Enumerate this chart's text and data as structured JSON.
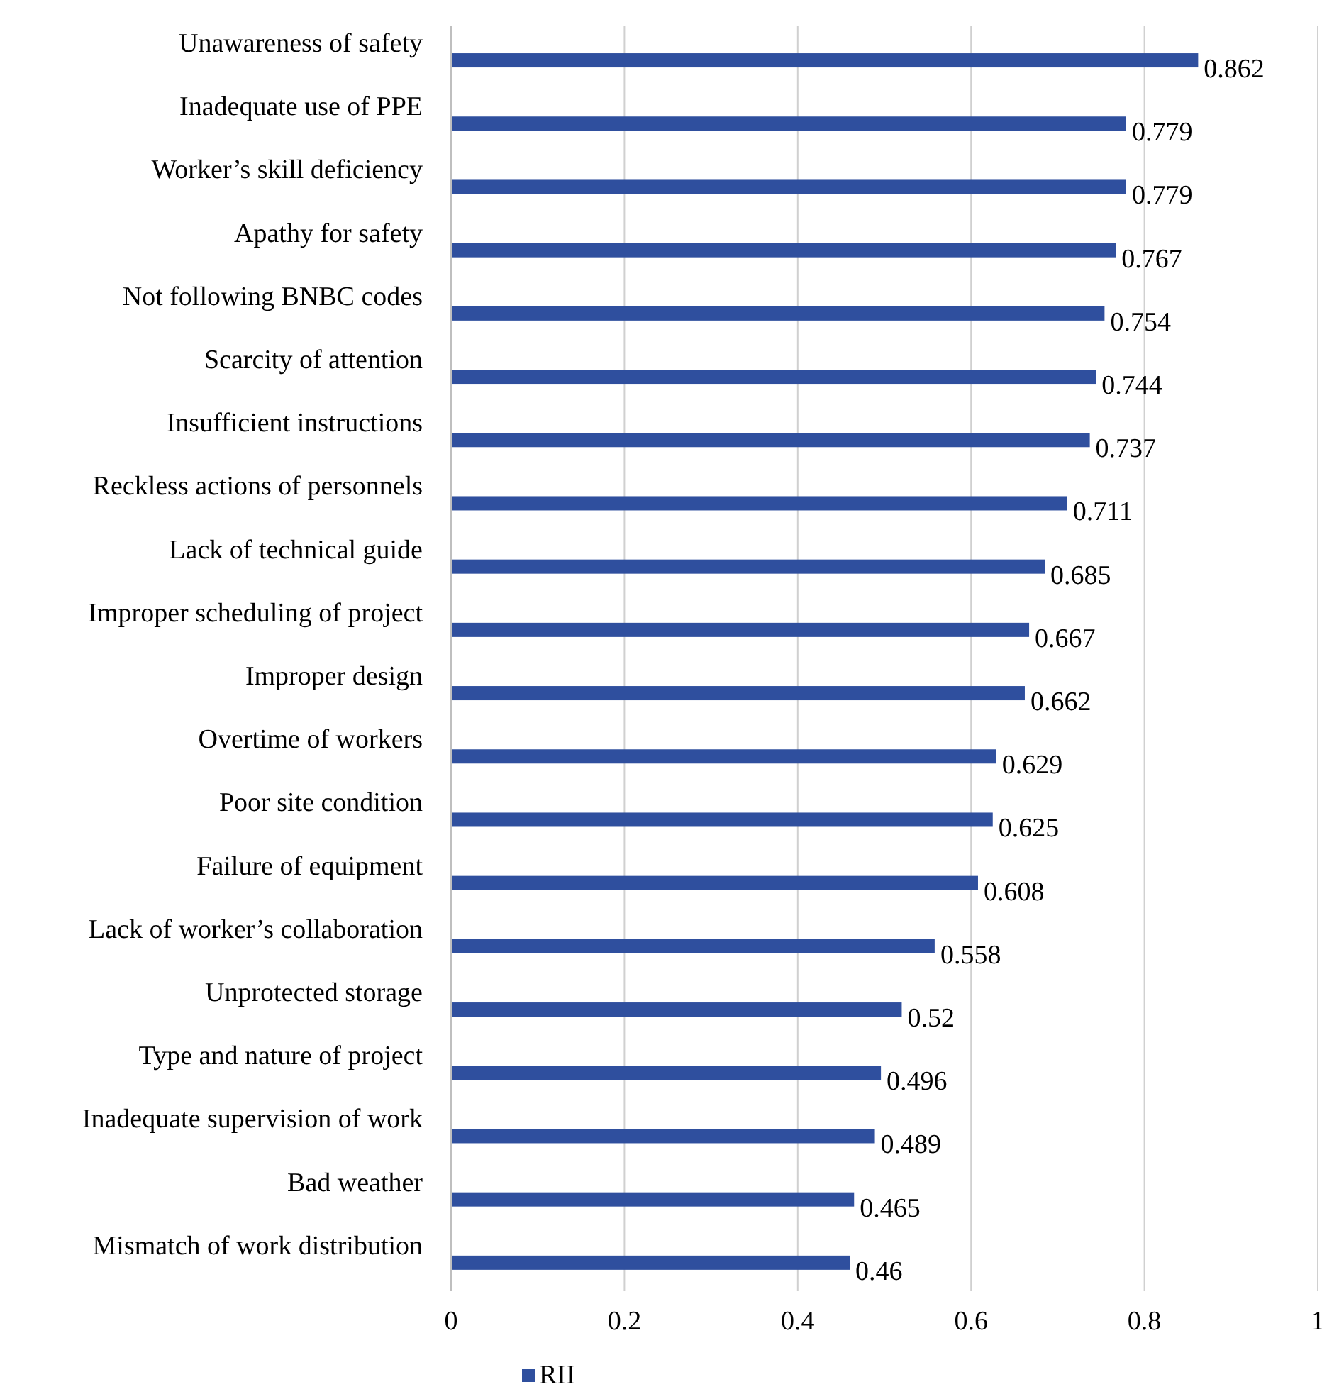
{
  "chart_data": {
    "type": "bar",
    "orientation": "horizontal",
    "categories": [
      "Unawareness of safety",
      "Inadequate use of PPE",
      "Worker’s skill deficiency",
      "Apathy for safety",
      "Not following BNBC codes",
      "Scarcity of attention",
      "Insufficient instructions",
      "Reckless actions of personnels",
      "Lack of technical guide",
      "Improper scheduling of project",
      "Improper design",
      "Overtime of workers",
      "Poor site condition",
      "Failure of equipment",
      "Lack of worker’s collaboration",
      "Unprotected storage",
      "Type and nature of project",
      "Inadequate supervision of work",
      "Bad weather",
      "Mismatch of work distribution"
    ],
    "series": [
      {
        "name": "RII",
        "color": "#2f4f9e",
        "values": [
          0.862,
          0.779,
          0.779,
          0.767,
          0.754,
          0.744,
          0.737,
          0.711,
          0.685,
          0.667,
          0.662,
          0.629,
          0.625,
          0.608,
          0.558,
          0.52,
          0.496,
          0.489,
          0.465,
          0.46
        ]
      }
    ],
    "xlim": [
      0,
      1
    ],
    "xticks": [
      0,
      0.2,
      0.4,
      0.6,
      0.8,
      1
    ],
    "grid": "x",
    "data_labels": true,
    "legend": "bottom"
  }
}
